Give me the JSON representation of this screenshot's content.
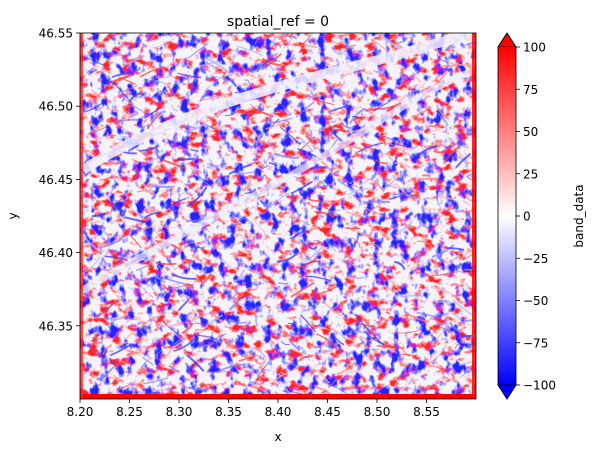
{
  "chart_data": {
    "type": "heatmap",
    "title": "spatial_ref = 0",
    "xlabel": "x",
    "ylabel": "y",
    "xlim": [
      8.2,
      8.6
    ],
    "ylim": [
      46.3,
      46.55
    ],
    "x_ticks": [
      "8.20",
      "8.25",
      "8.30",
      "8.35",
      "8.40",
      "8.45",
      "8.50",
      "8.55"
    ],
    "y_ticks": [
      "46.35",
      "46.40",
      "46.45",
      "46.50",
      "46.55"
    ],
    "colorbar": {
      "label": "band_data",
      "range": [
        -100,
        100
      ],
      "ticks": [
        "100",
        "75",
        "50",
        "25",
        "0",
        "−25",
        "−50",
        "−75",
        "−100"
      ],
      "colormap": "bwr",
      "extend": "both",
      "colors": {
        "low": "#0000ff",
        "mid": "#ffffff",
        "high": "#ff0000"
      }
    },
    "grid": false
  }
}
